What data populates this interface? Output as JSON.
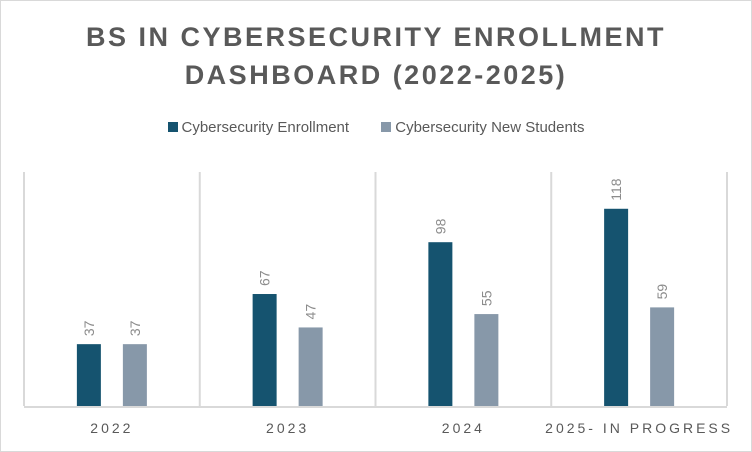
{
  "chart_data": {
    "type": "bar",
    "title": "BS IN CYBERSECURITY ENROLLMENT DASHBOARD (2022-2025)",
    "title_lines": [
      "BS IN CYBERSECURITY ENROLLMENT",
      "DASHBOARD (2022-2025)"
    ],
    "categories": [
      "2022",
      "2023",
      "2024",
      "2025- IN PROGRESS"
    ],
    "series": [
      {
        "name": "Cybersecurity Enrollment",
        "color": "#15536f",
        "values": [
          37,
          67,
          98,
          118
        ]
      },
      {
        "name": "Cybersecurity New Students",
        "color": "#8798a9",
        "values": [
          37,
          47,
          55,
          59
        ]
      }
    ],
    "xlabel": "",
    "ylabel": "",
    "ylim": [
      0,
      140
    ],
    "grid": "vertical category separators",
    "legend": "top",
    "data_labels": true
  }
}
